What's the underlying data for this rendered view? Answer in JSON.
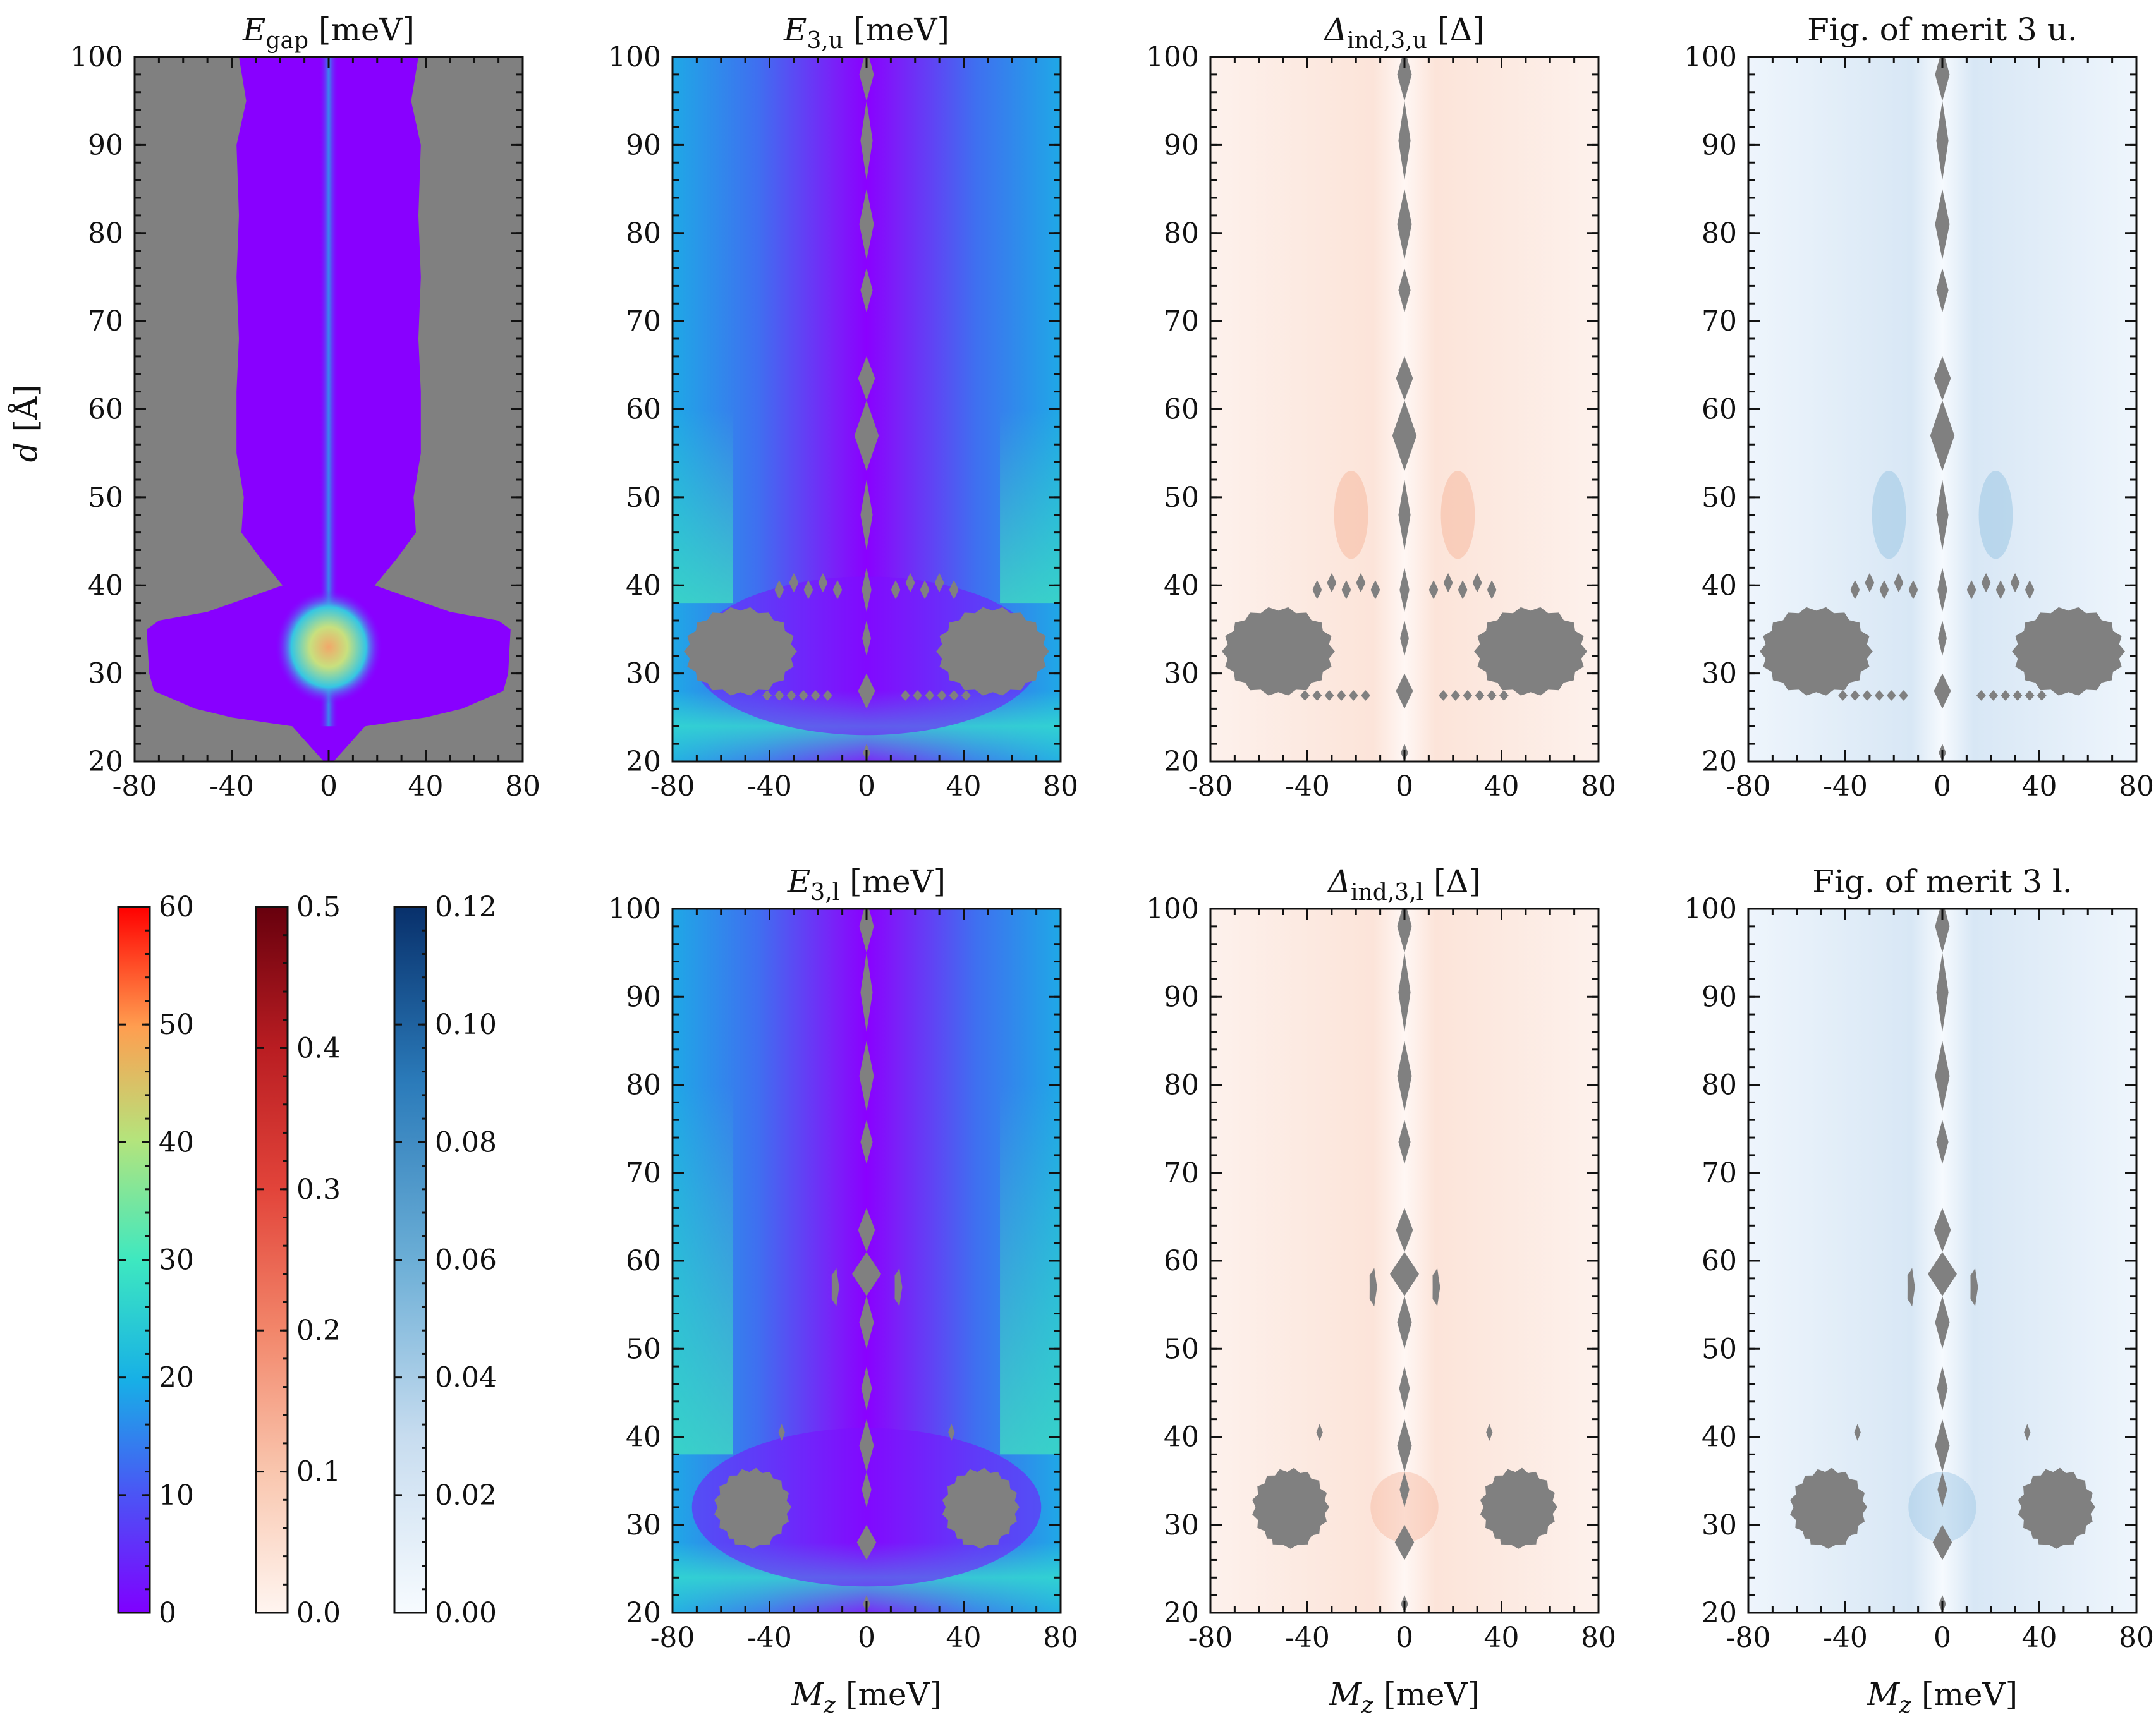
{
  "chart_data": {
    "type": "heatmap",
    "colors": {
      "gap_mask": "#808080",
      "frame": "#111111"
    },
    "panels": [
      {
        "id": "egap",
        "title_main": "E",
        "title_sub": "gap",
        "title_rest": " [meV]",
        "colormap": "rainbow",
        "vmax": 60,
        "ylabel_main": "d",
        "ylabel_rest": " [Å]",
        "xlabel_main": "",
        "xlabel_sub": "",
        "xlabel_rest": "",
        "xlim": [
          -80,
          80
        ],
        "ylim": [
          20,
          100
        ],
        "xticks": [
          "-80",
          "-40",
          "0",
          "40",
          "80"
        ],
        "yticks": [
          "20",
          "30",
          "40",
          "50",
          "60",
          "70",
          "80",
          "90",
          "100"
        ]
      },
      {
        "id": "e3u",
        "title_main": "E",
        "title_sub": "3,u",
        "title_rest": " [meV]",
        "colormap": "rainbow",
        "vmax": 60,
        "xlim": [
          -80,
          80
        ],
        "ylim": [
          20,
          100
        ],
        "xticks": [
          "-80",
          "-40",
          "0",
          "40",
          "80"
        ],
        "yticks": [
          "20",
          "30",
          "40",
          "50",
          "60",
          "70",
          "80",
          "90",
          "100"
        ]
      },
      {
        "id": "dind3u",
        "title_main": "Δ",
        "title_sub": "ind,3,u",
        "title_rest": " [Δ]",
        "colormap": "reds",
        "vmax": 0.5,
        "xlim": [
          -80,
          80
        ],
        "ylim": [
          20,
          100
        ],
        "xticks": [
          "-80",
          "-40",
          "0",
          "40",
          "80"
        ],
        "yticks": [
          "20",
          "30",
          "40",
          "50",
          "60",
          "70",
          "80",
          "90",
          "100"
        ]
      },
      {
        "id": "fom3u",
        "title_main": "Fig. of merit 3 u.",
        "title_sub": "",
        "title_rest": "",
        "colormap": "blues",
        "vmax": 0.12,
        "xlim": [
          -80,
          80
        ],
        "ylim": [
          20,
          100
        ],
        "xticks": [
          "-80",
          "-40",
          "0",
          "40",
          "80"
        ],
        "yticks": [
          "20",
          "30",
          "40",
          "50",
          "60",
          "70",
          "80",
          "90",
          "100"
        ]
      },
      {
        "id": "e3l",
        "title_main": "E",
        "title_sub": "3,l",
        "title_rest": " [meV]",
        "colormap": "rainbow",
        "vmax": 60,
        "xlabel_main": "M",
        "xlabel_sub": "z",
        "xlabel_rest": " [meV]",
        "xlim": [
          -80,
          80
        ],
        "ylim": [
          20,
          100
        ],
        "xticks": [
          "-80",
          "-40",
          "0",
          "40",
          "80"
        ],
        "yticks": [
          "20",
          "30",
          "40",
          "50",
          "60",
          "70",
          "80",
          "90",
          "100"
        ]
      },
      {
        "id": "dind3l",
        "title_main": "Δ",
        "title_sub": "ind,3,l",
        "title_rest": " [Δ]",
        "colormap": "reds",
        "vmax": 0.5,
        "xlabel_main": "M",
        "xlabel_sub": "z",
        "xlabel_rest": " [meV]",
        "xlim": [
          -80,
          80
        ],
        "ylim": [
          20,
          100
        ],
        "xticks": [
          "-80",
          "-40",
          "0",
          "40",
          "80"
        ],
        "yticks": [
          "20",
          "30",
          "40",
          "50",
          "60",
          "70",
          "80",
          "90",
          "100"
        ]
      },
      {
        "id": "fom3l",
        "title_main": "Fig. of merit 3 l.",
        "title_sub": "",
        "title_rest": "",
        "colormap": "blues",
        "vmax": 0.12,
        "xlabel_main": "M",
        "xlabel_sub": "z",
        "xlabel_rest": " [meV]",
        "xlim": [
          -80,
          80
        ],
        "ylim": [
          20,
          100
        ],
        "xticks": [
          "-80",
          "-40",
          "0",
          "40",
          "80"
        ],
        "yticks": [
          "20",
          "30",
          "40",
          "50",
          "60",
          "70",
          "80",
          "90",
          "100"
        ]
      }
    ],
    "colorbars": [
      {
        "id": "cb-rainbow",
        "colormap": "rainbow",
        "range": [
          0,
          60
        ],
        "ticks": [
          "0",
          "10",
          "20",
          "30",
          "40",
          "50",
          "60"
        ]
      },
      {
        "id": "cb-reds",
        "colormap": "reds",
        "range": [
          0.0,
          0.5
        ],
        "ticks": [
          "0.0",
          "0.1",
          "0.2",
          "0.3",
          "0.4",
          "0.5"
        ]
      },
      {
        "id": "cb-blues",
        "colormap": "blues",
        "range": [
          0.0,
          0.12
        ],
        "ticks": [
          "0.00",
          "0.02",
          "0.04",
          "0.06",
          "0.08",
          "0.10",
          "0.12"
        ]
      }
    ]
  }
}
